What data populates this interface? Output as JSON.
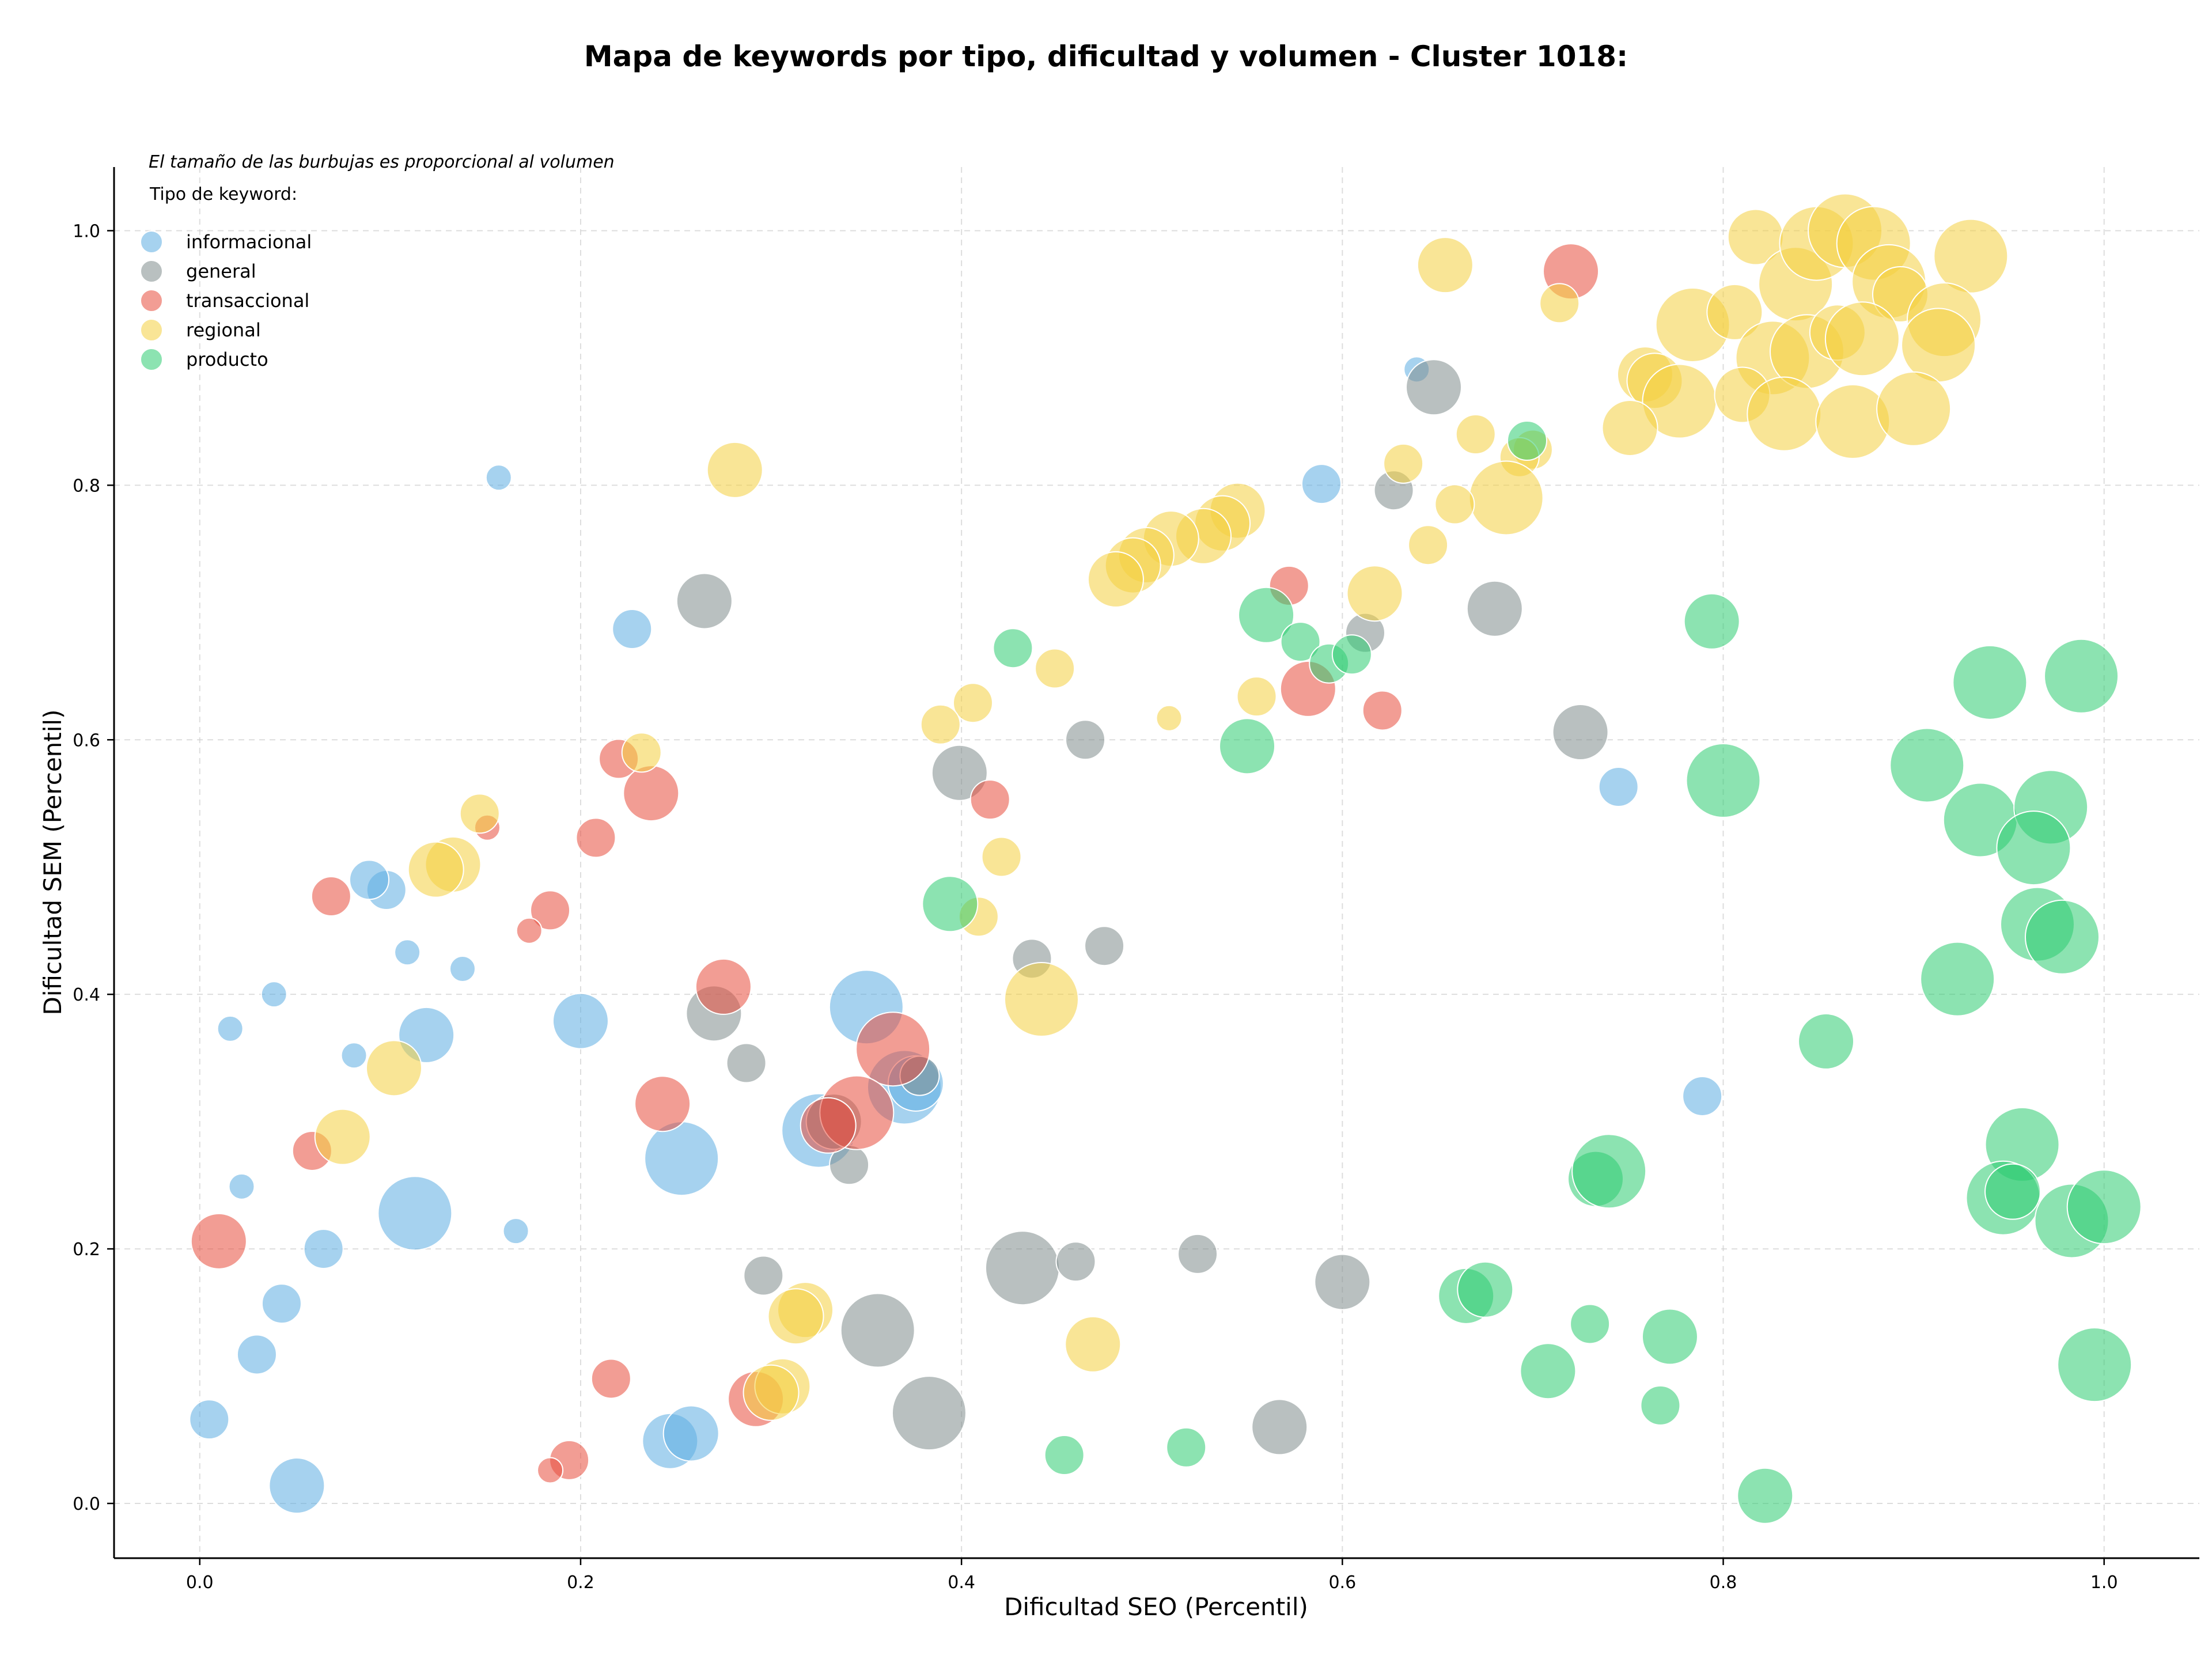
{
  "chart_data": {
    "type": "scatter",
    "title": "Mapa de keywords por tipo, dificultad y volumen - Cluster 1018:",
    "xlabel": "Dificultad SEO (Percentil)",
    "ylabel": "Dificultad SEM (Percentil)",
    "xlim": [
      -0.045,
      1.05
    ],
    "ylim": [
      -0.043,
      1.05
    ],
    "xticks": [
      "0.0",
      "0.2",
      "0.4",
      "0.6",
      "0.8",
      "1.0"
    ],
    "yticks": [
      "0.0",
      "0.2",
      "0.4",
      "0.6",
      "0.8",
      "1.0"
    ],
    "grid": true,
    "legend_position": "top-left",
    "note": "El tamaño de las burbujas es proporcional al volumen",
    "legend_title": "Tipo de keyword:",
    "series": [
      {
        "name": "informacional",
        "color": "#5dade2",
        "points": [
          [
            0.157,
            0.806,
            "s"
          ],
          [
            0.227,
            0.687,
            "m"
          ],
          [
            0.589,
            0.801,
            "m"
          ],
          [
            0.639,
            0.891,
            "s"
          ],
          [
            0.098,
            0.482,
            "m"
          ],
          [
            0.089,
            0.49,
            "m"
          ],
          [
            0.109,
            0.433,
            "s"
          ],
          [
            0.138,
            0.42,
            "s"
          ],
          [
            0.039,
            0.4,
            "s"
          ],
          [
            0.016,
            0.373,
            "s"
          ],
          [
            0.081,
            0.352,
            "s"
          ],
          [
            0.119,
            0.368,
            "l"
          ],
          [
            0.2,
            0.379,
            "l"
          ],
          [
            0.022,
            0.249,
            "s"
          ],
          [
            0.113,
            0.228,
            "xl"
          ],
          [
            0.065,
            0.2,
            "m"
          ],
          [
            0.166,
            0.214,
            "s"
          ],
          [
            0.043,
            0.157,
            "m"
          ],
          [
            0.03,
            0.117,
            "m"
          ],
          [
            0.005,
            0.066,
            "m"
          ],
          [
            0.051,
            0.014,
            "l"
          ],
          [
            0.253,
            0.271,
            "xl"
          ],
          [
            0.247,
            0.049,
            "l"
          ],
          [
            0.258,
            0.055,
            "l"
          ],
          [
            0.35,
            0.39,
            "xl"
          ],
          [
            0.325,
            0.293,
            "xl"
          ],
          [
            0.37,
            0.327,
            "xl"
          ],
          [
            0.376,
            0.33,
            "l"
          ],
          [
            0.745,
            0.563,
            "m"
          ],
          [
            0.789,
            0.32,
            "m"
          ]
        ]
      },
      {
        "name": "general",
        "color": "#7f8c8d",
        "points": [
          [
            0.265,
            0.709,
            "l"
          ],
          [
            0.648,
            0.877,
            "l"
          ],
          [
            0.627,
            0.796,
            "m"
          ],
          [
            0.612,
            0.684,
            "m"
          ],
          [
            0.68,
            0.703,
            "l"
          ],
          [
            0.465,
            0.6,
            "m"
          ],
          [
            0.399,
            0.574,
            "l"
          ],
          [
            0.725,
            0.606,
            "l"
          ],
          [
            0.437,
            0.428,
            "m"
          ],
          [
            0.475,
            0.438,
            "m"
          ],
          [
            0.27,
            0.385,
            "l"
          ],
          [
            0.287,
            0.346,
            "m"
          ],
          [
            0.341,
            0.266,
            "m"
          ],
          [
            0.333,
            0.3,
            "l"
          ],
          [
            0.378,
            0.336,
            "m"
          ],
          [
            0.296,
            0.179,
            "m"
          ],
          [
            0.356,
            0.136,
            "xl"
          ],
          [
            0.383,
            0.071,
            "xl"
          ],
          [
            0.432,
            0.185,
            "xl"
          ],
          [
            0.46,
            0.19,
            "m"
          ],
          [
            0.524,
            0.196,
            "m"
          ],
          [
            0.6,
            0.174,
            "l"
          ],
          [
            0.567,
            0.06,
            "l"
          ]
        ]
      },
      {
        "name": "transaccional",
        "color": "#e74c3c",
        "points": [
          [
            0.72,
            0.968,
            "l"
          ],
          [
            0.572,
            0.721,
            "m"
          ],
          [
            0.582,
            0.64,
            "l"
          ],
          [
            0.621,
            0.623,
            "m"
          ],
          [
            0.22,
            0.585,
            "m"
          ],
          [
            0.237,
            0.558,
            "l"
          ],
          [
            0.151,
            0.531,
            "s"
          ],
          [
            0.208,
            0.523,
            "m"
          ],
          [
            0.069,
            0.477,
            "m"
          ],
          [
            0.184,
            0.466,
            "m"
          ],
          [
            0.173,
            0.45,
            "s"
          ],
          [
            0.415,
            0.553,
            "m"
          ],
          [
            0.275,
            0.406,
            "l"
          ],
          [
            0.243,
            0.314,
            "l"
          ],
          [
            0.364,
            0.357,
            "xl"
          ],
          [
            0.345,
            0.307,
            "xl"
          ],
          [
            0.33,
            0.297,
            "l"
          ],
          [
            0.059,
            0.277,
            "m"
          ],
          [
            0.01,
            0.206,
            "l"
          ],
          [
            0.216,
            0.098,
            "m"
          ],
          [
            0.194,
            0.034,
            "m"
          ],
          [
            0.184,
            0.026,
            "s"
          ],
          [
            0.292,
            0.082,
            "l"
          ]
        ]
      },
      {
        "name": "regional",
        "color": "#f4d03f",
        "points": [
          [
            0.281,
            0.812,
            "l"
          ],
          [
            0.654,
            0.973,
            "l"
          ],
          [
            0.714,
            0.943,
            "m"
          ],
          [
            0.817,
            0.995,
            "l"
          ],
          [
            0.838,
            0.958,
            "xl"
          ],
          [
            0.849,
            0.99,
            "xl"
          ],
          [
            0.864,
            1.0,
            "xl"
          ],
          [
            0.879,
            0.99,
            "xl"
          ],
          [
            0.887,
            0.96,
            "xl"
          ],
          [
            0.893,
            0.95,
            "l"
          ],
          [
            0.93,
            0.98,
            "xl"
          ],
          [
            0.784,
            0.926,
            "xl"
          ],
          [
            0.806,
            0.936,
            "l"
          ],
          [
            0.826,
            0.9,
            "xl"
          ],
          [
            0.844,
            0.905,
            "xl"
          ],
          [
            0.86,
            0.92,
            "l"
          ],
          [
            0.873,
            0.915,
            "xl"
          ],
          [
            0.916,
            0.93,
            "xl"
          ],
          [
            0.913,
            0.91,
            "xl"
          ],
          [
            0.759,
            0.887,
            "l"
          ],
          [
            0.764,
            0.882,
            "l"
          ],
          [
            0.777,
            0.866,
            "xl"
          ],
          [
            0.81,
            0.871,
            "l"
          ],
          [
            0.832,
            0.856,
            "xl"
          ],
          [
            0.868,
            0.85,
            "xl"
          ],
          [
            0.9,
            0.86,
            "xl"
          ],
          [
            0.751,
            0.845,
            "l"
          ],
          [
            0.67,
            0.84,
            "m"
          ],
          [
            0.7,
            0.828,
            "m"
          ],
          [
            0.693,
            0.822,
            "m"
          ],
          [
            0.632,
            0.817,
            "m"
          ],
          [
            0.686,
            0.79,
            "xl"
          ],
          [
            0.659,
            0.785,
            "m"
          ],
          [
            0.645,
            0.753,
            "m"
          ],
          [
            0.617,
            0.715,
            "l"
          ],
          [
            0.545,
            0.78,
            "l"
          ],
          [
            0.537,
            0.77,
            "l"
          ],
          [
            0.527,
            0.76,
            "l"
          ],
          [
            0.51,
            0.758,
            "l"
          ],
          [
            0.497,
            0.745,
            "l"
          ],
          [
            0.49,
            0.737,
            "l"
          ],
          [
            0.481,
            0.726,
            "l"
          ],
          [
            0.449,
            0.656,
            "m"
          ],
          [
            0.406,
            0.629,
            "m"
          ],
          [
            0.389,
            0.612,
            "m"
          ],
          [
            0.555,
            0.634,
            "m"
          ],
          [
            0.509,
            0.617,
            "s"
          ],
          [
            0.421,
            0.508,
            "m"
          ],
          [
            0.409,
            0.461,
            "m"
          ],
          [
            0.442,
            0.396,
            "xl"
          ],
          [
            0.232,
            0.59,
            "m"
          ],
          [
            0.147,
            0.542,
            "m"
          ],
          [
            0.133,
            0.502,
            "l"
          ],
          [
            0.124,
            0.498,
            "l"
          ],
          [
            0.102,
            0.342,
            "l"
          ],
          [
            0.075,
            0.288,
            "l"
          ],
          [
            0.318,
            0.152,
            "l"
          ],
          [
            0.313,
            0.147,
            "l"
          ],
          [
            0.306,
            0.092,
            "l"
          ],
          [
            0.3,
            0.087,
            "l"
          ],
          [
            0.469,
            0.125,
            "l"
          ]
        ]
      },
      {
        "name": "producto",
        "color": "#2ecc71",
        "points": [
          [
            0.697,
            0.835,
            "m"
          ],
          [
            0.56,
            0.698,
            "l"
          ],
          [
            0.427,
            0.672,
            "m"
          ],
          [
            0.578,
            0.677,
            "m"
          ],
          [
            0.593,
            0.66,
            "m"
          ],
          [
            0.605,
            0.667,
            "m"
          ],
          [
            0.55,
            0.595,
            "l"
          ],
          [
            0.394,
            0.471,
            "l"
          ],
          [
            0.794,
            0.693,
            "l"
          ],
          [
            0.94,
            0.645,
            "xl"
          ],
          [
            0.988,
            0.65,
            "xl"
          ],
          [
            0.907,
            0.58,
            "xl"
          ],
          [
            0.8,
            0.568,
            "xl"
          ],
          [
            0.935,
            0.537,
            "xl"
          ],
          [
            0.972,
            0.547,
            "xl"
          ],
          [
            0.963,
            0.515,
            "xl"
          ],
          [
            0.965,
            0.455,
            "xl"
          ],
          [
            0.978,
            0.445,
            "xl"
          ],
          [
            0.923,
            0.412,
            "xl"
          ],
          [
            0.854,
            0.363,
            "l"
          ],
          [
            0.957,
            0.282,
            "xl"
          ],
          [
            0.947,
            0.24,
            "xl"
          ],
          [
            0.952,
            0.245,
            "l"
          ],
          [
            0.983,
            0.222,
            "xl"
          ],
          [
            1.0,
            0.233,
            "xl"
          ],
          [
            0.733,
            0.255,
            "l"
          ],
          [
            0.74,
            0.261,
            "xl"
          ],
          [
            0.665,
            0.163,
            "l"
          ],
          [
            0.675,
            0.168,
            "l"
          ],
          [
            0.73,
            0.141,
            "m"
          ],
          [
            0.772,
            0.131,
            "l"
          ],
          [
            0.708,
            0.104,
            "l"
          ],
          [
            0.767,
            0.077,
            "m"
          ],
          [
            0.995,
            0.109,
            "xl"
          ],
          [
            0.454,
            0.038,
            "m"
          ],
          [
            0.518,
            0.044,
            "m"
          ],
          [
            0.822,
            0.006,
            "l"
          ]
        ]
      }
    ]
  }
}
